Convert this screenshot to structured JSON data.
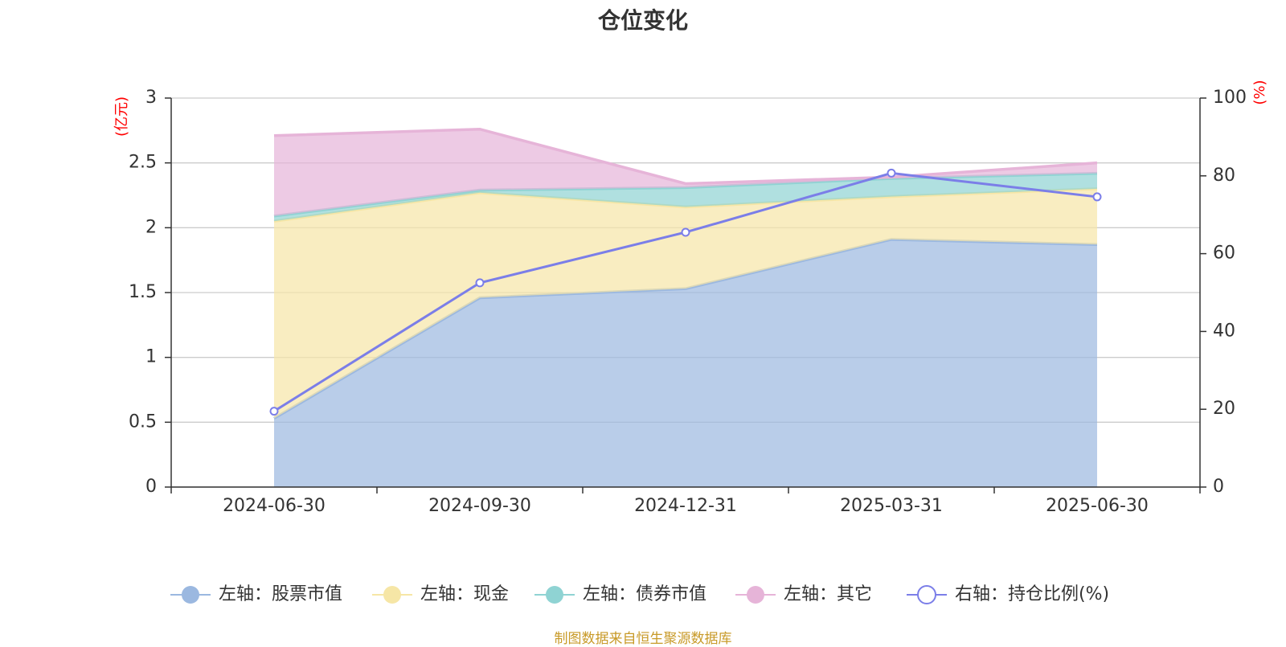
{
  "chart_data": {
    "type": "area",
    "title": "仓位变化",
    "categories": [
      "2024-06-30",
      "2024-09-30",
      "2024-12-31",
      "2025-03-31",
      "2025-06-30"
    ],
    "left_axis": {
      "unit": "(亿元)",
      "ylim": [
        0,
        3
      ],
      "ticks": [
        "0",
        "0.5",
        "1",
        "1.5",
        "2",
        "2.5",
        "3"
      ],
      "tick_values": [
        0,
        0.5,
        1,
        1.5,
        2,
        2.5,
        3
      ]
    },
    "right_axis": {
      "unit": "(%)",
      "ylim": [
        0,
        100
      ],
      "ticks": [
        "0",
        "20",
        "40",
        "60",
        "80",
        "100"
      ],
      "tick_values": [
        0,
        20,
        40,
        60,
        80,
        100
      ]
    },
    "stacked": true,
    "grid": true,
    "legend_position": "bottom",
    "series": [
      {
        "name": "左轴：股票市值",
        "axis": "left",
        "kind": "area",
        "color": "#9bb8e0",
        "values": [
          0.53,
          1.46,
          1.53,
          1.91,
          1.87
        ]
      },
      {
        "name": "左轴：现金",
        "axis": "left",
        "kind": "area",
        "color": "#f6e6a6",
        "values": [
          1.52,
          0.81,
          0.63,
          0.33,
          0.43
        ]
      },
      {
        "name": "左轴：债券市值",
        "axis": "left",
        "kind": "area",
        "color": "#8fd3d3",
        "values": [
          0.04,
          0.02,
          0.15,
          0.14,
          0.12
        ]
      },
      {
        "name": "左轴：其它",
        "axis": "left",
        "kind": "area",
        "color": "#e6b4d8",
        "values": [
          0.62,
          0.47,
          0.03,
          0.01,
          0.08
        ]
      },
      {
        "name": "右轴：持仓比例(%)",
        "axis": "right",
        "kind": "line",
        "color": "#7b7ee8",
        "values": [
          19.5,
          52.5,
          65.5,
          80.7,
          74.6
        ]
      }
    ]
  },
  "source_note": "制图数据来自恒生聚源数据库"
}
